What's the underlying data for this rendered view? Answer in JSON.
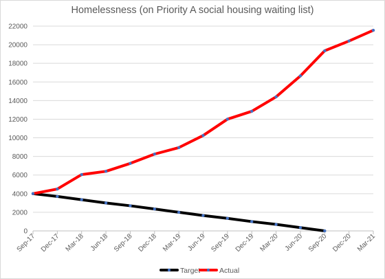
{
  "chart_data": {
    "type": "line",
    "title": "Homelessness (on Priority A social housing waiting list)",
    "xlabel": "",
    "ylabel": "",
    "categories": [
      "Sep-17",
      "Dec-17",
      "Mar-18",
      "Jun-18",
      "Sep-18",
      "Dec-18",
      "Mar-19",
      "Jun-19",
      "Sep-19",
      "Dec-19",
      "Mar-20",
      "Jun-20",
      "Sep-20",
      "Dec-20",
      "Mar-21"
    ],
    "ylim": [
      0,
      22000
    ],
    "yticks": [
      0,
      2000,
      4000,
      6000,
      8000,
      10000,
      12000,
      14000,
      16000,
      18000,
      20000,
      22000
    ],
    "grid": true,
    "legend_position": "bottom",
    "series": [
      {
        "name": "Target",
        "color": "#000000",
        "values": [
          4000,
          3700,
          3350,
          3000,
          2700,
          2350,
          2000,
          1650,
          1350,
          1000,
          700,
          350,
          0,
          null,
          null
        ]
      },
      {
        "name": "Actual",
        "color": "#ff0000",
        "values": [
          4000,
          4500,
          6050,
          6400,
          7250,
          8250,
          8950,
          10250,
          12000,
          12850,
          14400,
          16650,
          19350,
          20400,
          21550
        ]
      }
    ]
  }
}
